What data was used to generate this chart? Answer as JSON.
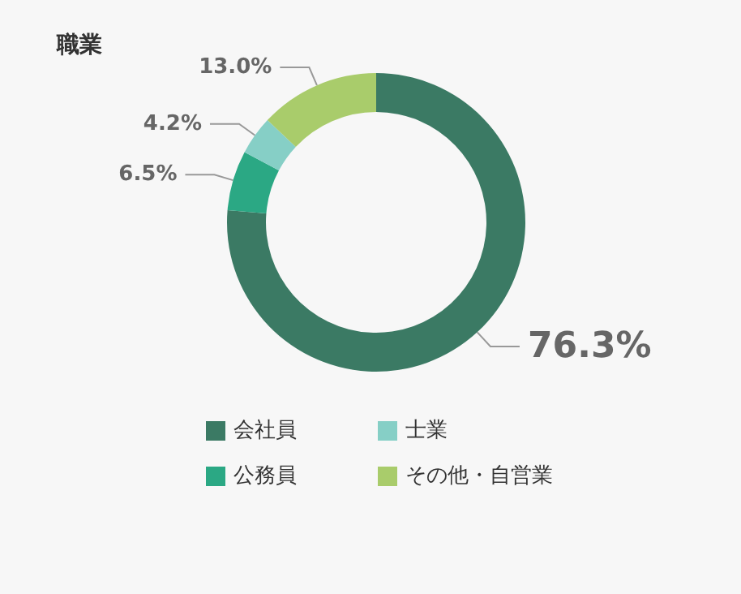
{
  "chart_data": {
    "type": "donut",
    "title": "職業",
    "categories": [
      "会社員",
      "公務員",
      "士業",
      "その他・自営業"
    ],
    "values": [
      76.3,
      6.5,
      4.2,
      13.0
    ],
    "value_labels": [
      "76.3%",
      "6.5%",
      "4.2%",
      "13.0%"
    ],
    "colors": [
      "#3b7a64",
      "#2ba884",
      "#86cfc6",
      "#a9cc6b"
    ],
    "legend": "bottom"
  }
}
